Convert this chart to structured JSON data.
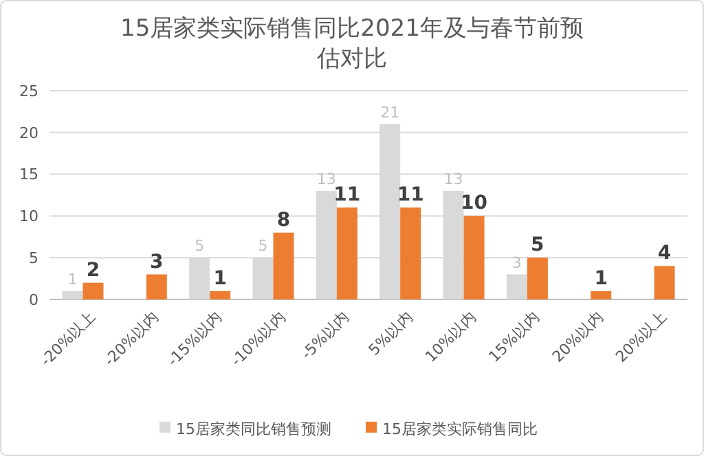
{
  "chart_data": {
    "type": "bar",
    "title": "15居家类实际销售同比2021年及与春节前预估对比",
    "categories": [
      "-20%以上",
      "-20%以内",
      "-15%以内",
      "-10%以内",
      "-5%以内",
      "5%以内",
      "10%以内",
      "15%以内",
      "20%以内",
      "20%以上"
    ],
    "series": [
      {
        "name": "15居家类同比销售预测",
        "color": "#d9d9d9",
        "values": [
          1,
          null,
          5,
          5,
          13,
          21,
          13,
          3,
          null,
          null
        ],
        "value_labels": [
          "1",
          null,
          "5",
          "5",
          "13",
          "21",
          "13",
          "3",
          null,
          null
        ]
      },
      {
        "name": "15居家类实际销售同比",
        "color": "#ed7d31",
        "values": [
          2,
          3,
          1,
          8,
          11,
          11,
          10,
          5,
          1,
          4
        ],
        "value_labels": [
          "2",
          "3",
          "1",
          "8",
          "11",
          "11",
          "10",
          "5",
          "1",
          "4"
        ]
      }
    ],
    "ylim": [
      0,
      25
    ],
    "yticks": [
      0,
      5,
      10,
      15,
      20,
      25
    ],
    "grid": "y",
    "legend": "bottom"
  }
}
